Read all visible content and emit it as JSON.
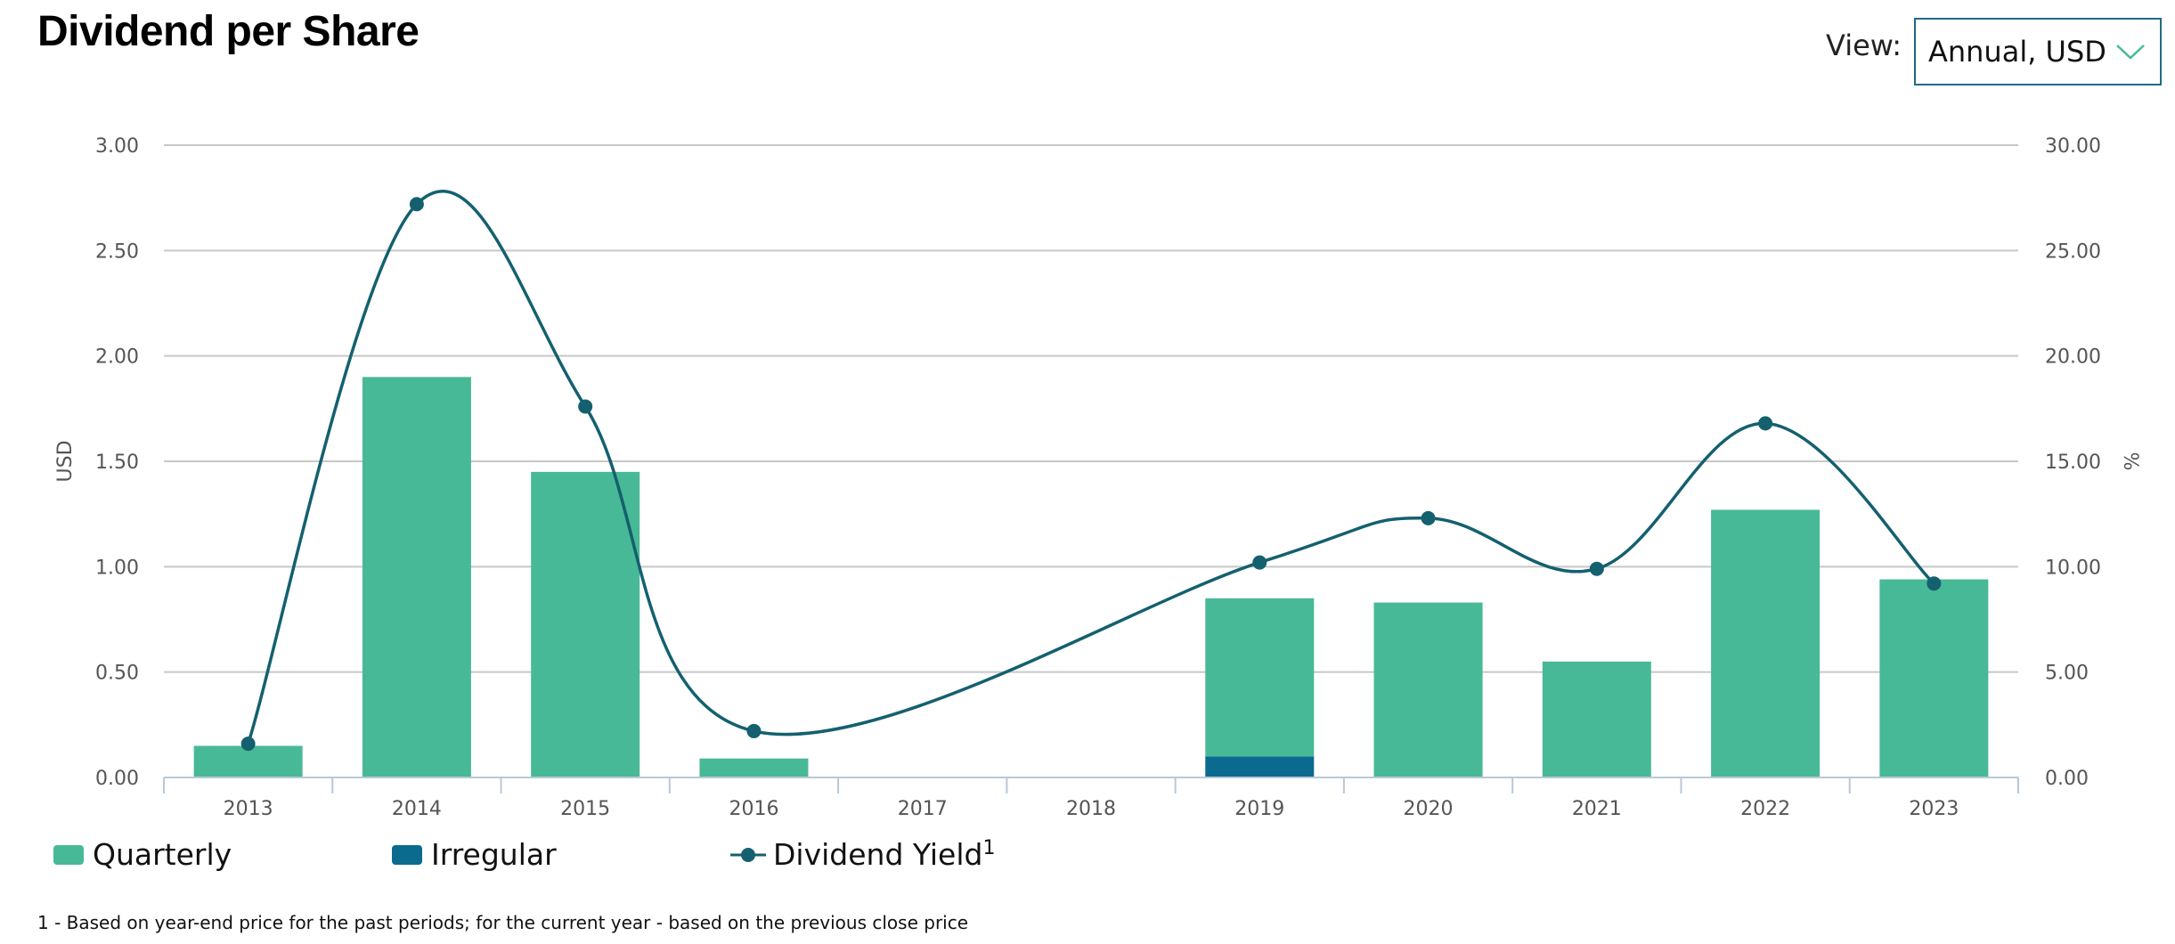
{
  "header": {
    "title": "Dividend per Share",
    "view_label": "View:",
    "view_value": "Annual, USD"
  },
  "colors": {
    "quarterly": "#48b996",
    "irregular": "#0a6b8f",
    "yield_line": "#14606f",
    "grid": "#c8c8c8"
  },
  "legend": {
    "quarterly": "Quarterly",
    "irregular": "Irregular",
    "yield": "Dividend Yield",
    "yield_sup": "1"
  },
  "footnote": "1 - Based on year-end price for the past periods; for the current year - based on the previous close price",
  "chart_data": {
    "type": "bar",
    "categories": [
      "2013",
      "2014",
      "2015",
      "2016",
      "2017",
      "2018",
      "2019",
      "2020",
      "2021",
      "2022",
      "2023"
    ],
    "series": [
      {
        "name": "Quarterly",
        "type": "bar",
        "axis": "left",
        "values": [
          0.15,
          1.9,
          1.45,
          0.09,
          0,
          0,
          0.75,
          0.83,
          0.55,
          1.27,
          0.94
        ]
      },
      {
        "name": "Irregular",
        "type": "bar",
        "axis": "left",
        "values": [
          0,
          0,
          0,
          0,
          0,
          0,
          0.1,
          0,
          0,
          0,
          0
        ]
      },
      {
        "name": "Dividend Yield",
        "type": "line",
        "axis": "right",
        "values": [
          1.6,
          27.2,
          17.6,
          2.2,
          null,
          null,
          10.2,
          12.3,
          9.9,
          16.8,
          9.2
        ]
      }
    ],
    "ylabel": "USD",
    "ylim": [
      0,
      3
    ],
    "yticks": [
      "0.00",
      "0.50",
      "1.00",
      "1.50",
      "2.00",
      "2.50",
      "3.00"
    ],
    "y2label": "%",
    "y2lim": [
      0,
      30
    ],
    "y2ticks": [
      "0.00",
      "5.00",
      "10.00",
      "15.00",
      "20.00",
      "25.00",
      "30.00"
    ],
    "grid": true,
    "legend_position": "bottom-left"
  }
}
